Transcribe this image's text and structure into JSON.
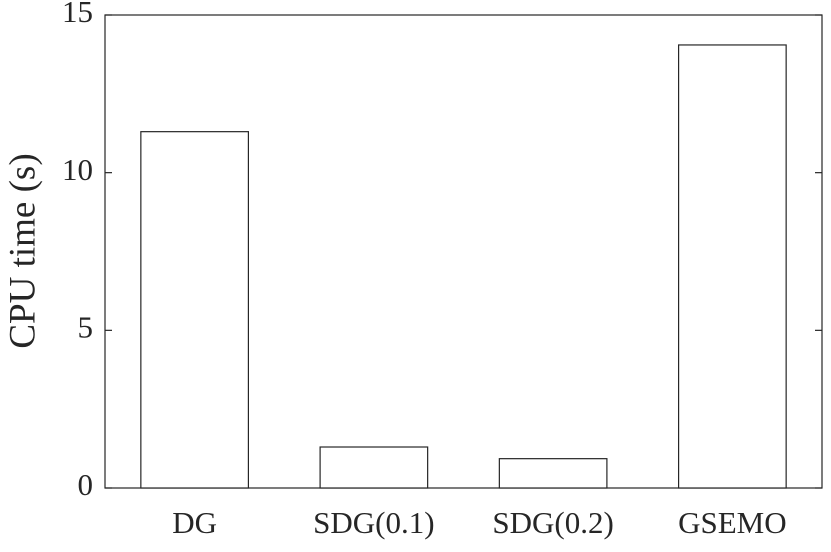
{
  "chart_data": {
    "type": "bar",
    "y_label": "CPU time (s)",
    "categories": [
      "DG",
      "SDG(0.1)",
      "SDG(0.2)",
      "GSEMO"
    ],
    "values": [
      11.3,
      1.3,
      0.93,
      14.05
    ],
    "color": "#ffffff",
    "ylim": [
      0,
      15
    ],
    "yticks": [
      0,
      5,
      10,
      15
    ],
    "grid": false
  }
}
